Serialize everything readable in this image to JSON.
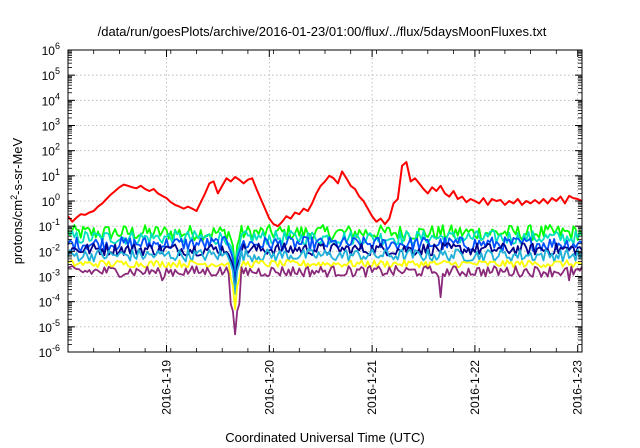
{
  "chart_data": {
    "type": "line",
    "title": "/data/run/goesPlots/archive/2016-01-23/01:00/flux/../flux/5daysMoonFluxes.txt",
    "xlabel": "Coordinated Universal Time (UTC)",
    "ylabel_parts": {
      "main": "protons/cm",
      "sup": "2",
      "rest": "-s-sr-MeV"
    },
    "x_range": [
      "2016-01-18 01:00",
      "2016-01-23 01:00"
    ],
    "x_ticks": [
      {
        "t": "2016-01-19 00:00",
        "label": "2016-1-19"
      },
      {
        "t": "2016-01-20 00:00",
        "label": "2016-1-20"
      },
      {
        "t": "2016-01-21 00:00",
        "label": "2016-1-21"
      },
      {
        "t": "2016-01-22 00:00",
        "label": "2016-1-22"
      },
      {
        "t": "2016-01-23 00:00",
        "label": "2016-1-23"
      }
    ],
    "y_scale": "log",
    "y_range": [
      1e-06,
      1000000.0
    ],
    "y_ticks": [
      {
        "v": 1e-06,
        "base": "10",
        "exp": "-6"
      },
      {
        "v": 1e-05,
        "base": "10",
        "exp": "-5"
      },
      {
        "v": 0.0001,
        "base": "10",
        "exp": "-4"
      },
      {
        "v": 0.001,
        "base": "10",
        "exp": "-3"
      },
      {
        "v": 0.01,
        "base": "10",
        "exp": "-2"
      },
      {
        "v": 0.1,
        "base": "10",
        "exp": "-1"
      },
      {
        "v": 1,
        "base": "10",
        "exp": "0"
      },
      {
        "v": 10,
        "base": "10",
        "exp": "1"
      },
      {
        "v": 100,
        "base": "10",
        "exp": "2"
      },
      {
        "v": 1000,
        "base": "10",
        "exp": "3"
      },
      {
        "v": 10000,
        "base": "10",
        "exp": "4"
      },
      {
        "v": 100000,
        "base": "10",
        "exp": "5"
      },
      {
        "v": 1000000,
        "base": "10",
        "exp": "6"
      }
    ],
    "grid": true,
    "series": [
      {
        "color": "#ff0000",
        "points": [
          [
            "2016-01-18 01:00",
            0.25
          ],
          [
            "2016-01-18 02:00",
            0.15
          ],
          [
            "2016-01-18 03:00",
            0.22
          ],
          [
            "2016-01-18 04:00",
            0.3
          ],
          [
            "2016-01-18 05:00",
            0.28
          ],
          [
            "2016-01-18 06:00",
            0.35
          ],
          [
            "2016-01-18 07:00",
            0.4
          ],
          [
            "2016-01-18 08:00",
            0.6
          ],
          [
            "2016-01-18 09:00",
            0.8
          ],
          [
            "2016-01-18 10:00",
            1.2
          ],
          [
            "2016-01-18 11:00",
            1.8
          ],
          [
            "2016-01-18 12:00",
            2.5
          ],
          [
            "2016-01-18 13:00",
            3.5
          ],
          [
            "2016-01-18 14:00",
            4.5
          ],
          [
            "2016-01-18 15:00",
            4.0
          ],
          [
            "2016-01-18 16:00",
            3.5
          ],
          [
            "2016-01-18 17:00",
            3.2
          ],
          [
            "2016-01-18 18:00",
            4.0
          ],
          [
            "2016-01-18 19:00",
            3.0
          ],
          [
            "2016-01-18 20:00",
            2.5
          ],
          [
            "2016-01-18 21:00",
            3.0
          ],
          [
            "2016-01-18 22:00",
            2.0
          ],
          [
            "2016-01-18 23:00",
            1.6
          ],
          [
            "2016-01-19 00:00",
            1.3
          ],
          [
            "2016-01-19 01:00",
            0.9
          ],
          [
            "2016-01-19 02:00",
            0.7
          ],
          [
            "2016-01-19 03:00",
            0.6
          ],
          [
            "2016-01-19 04:00",
            0.5
          ],
          [
            "2016-01-19 05:00",
            0.6
          ],
          [
            "2016-01-19 06:00",
            0.5
          ],
          [
            "2016-01-19 07:00",
            0.4
          ],
          [
            "2016-01-19 08:00",
            0.9
          ],
          [
            "2016-01-19 09:00",
            2.0
          ],
          [
            "2016-01-19 10:00",
            5.0
          ],
          [
            "2016-01-19 11:00",
            6.0
          ],
          [
            "2016-01-19 12:00",
            2.0
          ],
          [
            "2016-01-19 13:00",
            4.0
          ],
          [
            "2016-01-19 14:00",
            8.0
          ],
          [
            "2016-01-19 15:00",
            6.0
          ],
          [
            "2016-01-19 16:00",
            9.0
          ],
          [
            "2016-01-19 17:00",
            7.0
          ],
          [
            "2016-01-19 18:00",
            5.0
          ],
          [
            "2016-01-19 19:00",
            7.0
          ],
          [
            "2016-01-19 20:00",
            8.0
          ],
          [
            "2016-01-19 21:00",
            3.0
          ],
          [
            "2016-01-19 22:00",
            1.2
          ],
          [
            "2016-01-19 23:00",
            0.5
          ],
          [
            "2016-01-20 00:00",
            0.2
          ],
          [
            "2016-01-20 01:00",
            0.12
          ],
          [
            "2016-01-20 02:00",
            0.1
          ],
          [
            "2016-01-20 03:00",
            0.15
          ],
          [
            "2016-01-20 04:00",
            0.25
          ],
          [
            "2016-01-20 05:00",
            0.2
          ],
          [
            "2016-01-20 06:00",
            0.35
          ],
          [
            "2016-01-20 07:00",
            0.3
          ],
          [
            "2016-01-20 08:00",
            0.5
          ],
          [
            "2016-01-20 09:00",
            0.4
          ],
          [
            "2016-01-20 10:00",
            0.8
          ],
          [
            "2016-01-20 11:00",
            2.0
          ],
          [
            "2016-01-20 12:00",
            4.0
          ],
          [
            "2016-01-20 13:00",
            6.0
          ],
          [
            "2016-01-20 14:00",
            10.0
          ],
          [
            "2016-01-20 15:00",
            8.0
          ],
          [
            "2016-01-20 16:00",
            5.0
          ],
          [
            "2016-01-20 17:00",
            15.0
          ],
          [
            "2016-01-20 18:00",
            8.0
          ],
          [
            "2016-01-20 19:00",
            4.0
          ],
          [
            "2016-01-20 20:00",
            3.0
          ],
          [
            "2016-01-20 21:00",
            1.5
          ],
          [
            "2016-01-20 22:00",
            1.0
          ],
          [
            "2016-01-20 23:00",
            0.5
          ],
          [
            "2016-01-21 00:00",
            0.25
          ],
          [
            "2016-01-21 01:00",
            0.15
          ],
          [
            "2016-01-21 02:00",
            0.2
          ],
          [
            "2016-01-21 03:00",
            0.12
          ],
          [
            "2016-01-21 04:00",
            0.2
          ],
          [
            "2016-01-21 05:00",
            0.8
          ],
          [
            "2016-01-21 06:00",
            1.2
          ],
          [
            "2016-01-21 07:00",
            25.0
          ],
          [
            "2016-01-21 08:00",
            35.0
          ],
          [
            "2016-01-21 09:00",
            6.0
          ],
          [
            "2016-01-21 10:00",
            8.0
          ],
          [
            "2016-01-21 11:00",
            5.0
          ],
          [
            "2016-01-21 12:00",
            3.0
          ],
          [
            "2016-01-21 13:00",
            2.0
          ],
          [
            "2016-01-21 14:00",
            3.5
          ],
          [
            "2016-01-21 15:00",
            2.5
          ],
          [
            "2016-01-21 16:00",
            4.0
          ],
          [
            "2016-01-21 17:00",
            2.0
          ],
          [
            "2016-01-21 18:00",
            1.5
          ],
          [
            "2016-01-21 19:00",
            2.5
          ],
          [
            "2016-01-21 20:00",
            1.2
          ],
          [
            "2016-01-21 21:00",
            1.5
          ],
          [
            "2016-01-21 22:00",
            0.9
          ],
          [
            "2016-01-21 23:00",
            1.2
          ],
          [
            "2016-01-22 00:00",
            1.0
          ],
          [
            "2016-01-22 01:00",
            0.8
          ],
          [
            "2016-01-22 02:00",
            1.3
          ],
          [
            "2016-01-22 03:00",
            0.7
          ],
          [
            "2016-01-22 04:00",
            1.2
          ],
          [
            "2016-01-22 05:00",
            1.0
          ],
          [
            "2016-01-22 06:00",
            1.1
          ],
          [
            "2016-01-22 07:00",
            0.7
          ],
          [
            "2016-01-22 08:00",
            1.0
          ],
          [
            "2016-01-22 09:00",
            0.8
          ],
          [
            "2016-01-22 10:00",
            1.2
          ],
          [
            "2016-01-22 11:00",
            0.7
          ],
          [
            "2016-01-22 12:00",
            1.0
          ],
          [
            "2016-01-22 13:00",
            0.8
          ],
          [
            "2016-01-22 14:00",
            1.1
          ],
          [
            "2016-01-22 15:00",
            0.8
          ],
          [
            "2016-01-22 16:00",
            1.2
          ],
          [
            "2016-01-22 17:00",
            0.8
          ],
          [
            "2016-01-22 18:00",
            1.3
          ],
          [
            "2016-01-22 19:00",
            1.0
          ],
          [
            "2016-01-22 20:00",
            1.5
          ],
          [
            "2016-01-22 21:00",
            0.8
          ],
          [
            "2016-01-22 22:00",
            1.6
          ],
          [
            "2016-01-22 23:00",
            1.3
          ],
          [
            "2016-01-23 00:00",
            1.2
          ],
          [
            "2016-01-23 01:00",
            1.0
          ]
        ]
      },
      {
        "color": "#00ff00",
        "base": 0.055,
        "amp": 0.07,
        "dips": [
          [
            "2016-01-19 16:00",
            0.002
          ]
        ]
      },
      {
        "color": "#00e0c0",
        "base": 0.035,
        "amp": 0.06,
        "dips": [
          [
            "2016-01-19 16:00",
            0.001
          ]
        ]
      },
      {
        "color": "#0050ff",
        "base": 0.02,
        "amp": 0.06,
        "dips": [
          [
            "2016-01-19 16:00",
            0.0006
          ]
        ]
      },
      {
        "color": "#00008b",
        "base": 0.012,
        "amp": 0.05,
        "dips": [
          [
            "2016-01-19 16:00",
            0.0003
          ]
        ]
      },
      {
        "color": "#20b0d8",
        "base": 0.007,
        "amp": 0.05,
        "dips": [
          [
            "2016-01-19 16:00",
            0.0002
          ]
        ]
      },
      {
        "color": "#ffff00",
        "base": 0.0032,
        "amp": 0.015,
        "dips": [
          [
            "2016-01-19 16:00",
            5e-05
          ]
        ]
      },
      {
        "color": "#8b2a7a",
        "base": 0.0016,
        "amp": 0.04,
        "dips": [
          [
            "2016-01-18 23:00",
            0.0007
          ],
          [
            "2016-01-19 16:00",
            5e-06
          ],
          [
            "2016-01-21 16:00",
            0.00015
          ],
          [
            "2016-01-22 22:00",
            0.0007
          ]
        ]
      }
    ]
  }
}
